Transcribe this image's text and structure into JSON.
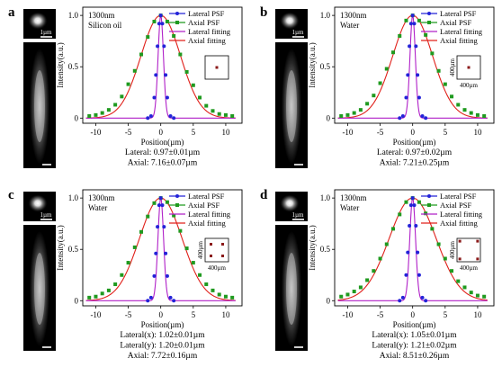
{
  "figure": {
    "panels": [
      {
        "letter": "a",
        "wavelength": "1300nm",
        "medium": "Silicon oil",
        "scale_top": "1µm",
        "inset_label_y": "",
        "inset_label_x": "",
        "inset_dots": "center",
        "results": [
          "Lateral: 0.97±0.01µm",
          "Axial: 7.16±0.07µm"
        ]
      },
      {
        "letter": "b",
        "wavelength": "1300nm",
        "medium": "Water",
        "scale_top": "1µm",
        "inset_label_y": "400µm",
        "inset_label_x": "400µm",
        "inset_dots": "center",
        "results": [
          "Lateral: 0.97±0.02µm",
          "Axial: 7.21±0.25µm"
        ]
      },
      {
        "letter": "c",
        "wavelength": "1300nm",
        "medium": "Water",
        "scale_top": "1µm",
        "inset_label_y": "400µm",
        "inset_label_x": "400µm",
        "inset_dots": "corners-inner",
        "results": [
          "Lateral(x): 1.02±0.01µm",
          "Lateral(y): 1.20±0.01µm",
          "Axial: 7.72±0.16µm"
        ]
      },
      {
        "letter": "d",
        "wavelength": "1300nm",
        "medium": "Water",
        "scale_top": "1µm",
        "inset_label_y": "400µm",
        "inset_label_x": "400µm",
        "inset_dots": "corners-outer",
        "results": [
          "Lateral(x): 1.05±0.01µm",
          "Lateral(y): 1.21±0.02µm",
          "Axial: 8.51±0.26µm"
        ]
      }
    ],
    "colors": {
      "lateral_psf": "#2323d8",
      "axial_psf": "#1f9a1f",
      "lateral_fit": "#b020c8",
      "axial_fit": "#e0201a"
    }
  },
  "chart_data": [
    {
      "type": "line",
      "xlabel": "Position(µm)",
      "ylabel": "Intensity(a.u.)",
      "xlim": [
        -12,
        12.5
      ],
      "ylim": [
        -0.05,
        1.08
      ],
      "xticks": [
        -10,
        -5,
        0,
        5,
        10
      ],
      "yticks": [
        0,
        0.5,
        1.0
      ],
      "series": [
        {
          "name": "Lateral PSF",
          "x": [
            -2.0,
            -1.5,
            -1.0,
            -0.75,
            -0.5,
            -0.25,
            0,
            0.25,
            0.5,
            0.75,
            1.0,
            1.5,
            2.0
          ],
          "y": [
            0.0,
            0.02,
            0.2,
            0.42,
            0.7,
            0.92,
            1.0,
            0.92,
            0.7,
            0.42,
            0.2,
            0.02,
            0.0
          ]
        },
        {
          "name": "Axial PSF",
          "x": [
            -11,
            -10,
            -9,
            -8,
            -7,
            -6,
            -5,
            -4,
            -3,
            -2,
            -1,
            0,
            1,
            2,
            3,
            4,
            5,
            6,
            7,
            8,
            9,
            10,
            11
          ],
          "y": [
            0.02,
            0.03,
            0.05,
            0.08,
            0.13,
            0.21,
            0.33,
            0.46,
            0.62,
            0.79,
            0.94,
            1.0,
            0.94,
            0.8,
            0.62,
            0.45,
            0.32,
            0.2,
            0.12,
            0.07,
            0.04,
            0.03,
            0.02
          ]
        },
        {
          "name": "Lateral fitting",
          "fwhm": 0.97
        },
        {
          "name": "Axial fitting",
          "fwhm": 7.16
        }
      ]
    },
    {
      "type": "line",
      "xlabel": "Position(µm)",
      "ylabel": "Intensity(a.u.)",
      "xlim": [
        -12,
        12.5
      ],
      "ylim": [
        -0.05,
        1.08
      ],
      "xticks": [
        -10,
        -5,
        0,
        5,
        10
      ],
      "yticks": [
        0,
        0.5,
        1.0
      ],
      "series": [
        {
          "name": "Lateral PSF",
          "x": [
            -2.0,
            -1.5,
            -1.0,
            -0.75,
            -0.5,
            -0.25,
            0,
            0.25,
            0.5,
            0.75,
            1.0,
            1.5,
            2.0
          ],
          "y": [
            0.0,
            0.02,
            0.2,
            0.42,
            0.7,
            0.92,
            1.0,
            0.92,
            0.7,
            0.42,
            0.2,
            0.02,
            0.0
          ]
        },
        {
          "name": "Axial PSF",
          "x": [
            -11,
            -10,
            -9,
            -8,
            -7,
            -6,
            -5,
            -4,
            -3,
            -2,
            -1,
            0,
            1,
            2,
            3,
            4,
            5,
            6,
            7,
            8,
            9,
            10,
            11
          ],
          "y": [
            0.02,
            0.03,
            0.05,
            0.08,
            0.14,
            0.22,
            0.34,
            0.48,
            0.64,
            0.8,
            0.95,
            1.0,
            0.95,
            0.81,
            0.63,
            0.46,
            0.33,
            0.21,
            0.13,
            0.08,
            0.05,
            0.03,
            0.02
          ]
        },
        {
          "name": "Lateral fitting",
          "fwhm": 0.97
        },
        {
          "name": "Axial fitting",
          "fwhm": 7.21
        }
      ]
    },
    {
      "type": "line",
      "xlabel": "Position(µm)",
      "ylabel": "Intensity(a.u.)",
      "xlim": [
        -12,
        12.5
      ],
      "ylim": [
        -0.05,
        1.08
      ],
      "xticks": [
        -10,
        -5,
        0,
        5,
        10
      ],
      "yticks": [
        0,
        0.5,
        1.0
      ],
      "series": [
        {
          "name": "Lateral PSF",
          "x": [
            -2.0,
            -1.5,
            -1.0,
            -0.75,
            -0.5,
            -0.25,
            0,
            0.25,
            0.5,
            0.75,
            1.0,
            1.5,
            2.0
          ],
          "y": [
            0.0,
            0.03,
            0.24,
            0.46,
            0.72,
            0.93,
            1.0,
            0.93,
            0.72,
            0.46,
            0.24,
            0.03,
            0.0
          ]
        },
        {
          "name": "Axial PSF",
          "x": [
            -11,
            -10,
            -9,
            -8,
            -7,
            -6,
            -5,
            -4,
            -3,
            -2,
            -1,
            0,
            1,
            2,
            3,
            4,
            5,
            6,
            7,
            8,
            9,
            10,
            11
          ],
          "y": [
            0.03,
            0.04,
            0.07,
            0.1,
            0.16,
            0.25,
            0.37,
            0.52,
            0.67,
            0.82,
            0.95,
            1.0,
            0.96,
            0.83,
            0.68,
            0.51,
            0.37,
            0.25,
            0.16,
            0.1,
            0.06,
            0.04,
            0.03
          ]
        },
        {
          "name": "Lateral fitting",
          "fwhm": 1.02
        },
        {
          "name": "Axial fitting",
          "fwhm": 7.72
        }
      ]
    },
    {
      "type": "line",
      "xlabel": "Position(µm)",
      "ylabel": "Intensity(a.u.)",
      "xlim": [
        -12,
        12.5
      ],
      "ylim": [
        -0.05,
        1.08
      ],
      "xticks": [
        -10,
        -5,
        0,
        5,
        10
      ],
      "yticks": [
        0,
        0.5,
        1.0
      ],
      "series": [
        {
          "name": "Lateral PSF",
          "x": [
            -2.0,
            -1.5,
            -1.0,
            -0.75,
            -0.5,
            -0.25,
            0,
            0.25,
            0.5,
            0.75,
            1.0,
            1.5,
            2.0
          ],
          "y": [
            0.0,
            0.03,
            0.25,
            0.47,
            0.73,
            0.93,
            1.0,
            0.93,
            0.73,
            0.47,
            0.25,
            0.03,
            0.0
          ]
        },
        {
          "name": "Axial PSF",
          "x": [
            -11,
            -10,
            -9,
            -8,
            -7,
            -6,
            -5,
            -4,
            -3,
            -2,
            -1,
            0,
            1,
            2,
            3,
            4,
            5,
            6,
            7,
            8,
            9,
            10,
            11
          ],
          "y": [
            0.04,
            0.06,
            0.09,
            0.13,
            0.2,
            0.29,
            0.41,
            0.55,
            0.7,
            0.84,
            0.96,
            1.0,
            0.96,
            0.85,
            0.7,
            0.55,
            0.41,
            0.29,
            0.19,
            0.13,
            0.08,
            0.05,
            0.04
          ]
        },
        {
          "name": "Lateral fitting",
          "fwhm": 1.05
        },
        {
          "name": "Axial fitting",
          "fwhm": 8.51
        }
      ]
    }
  ]
}
